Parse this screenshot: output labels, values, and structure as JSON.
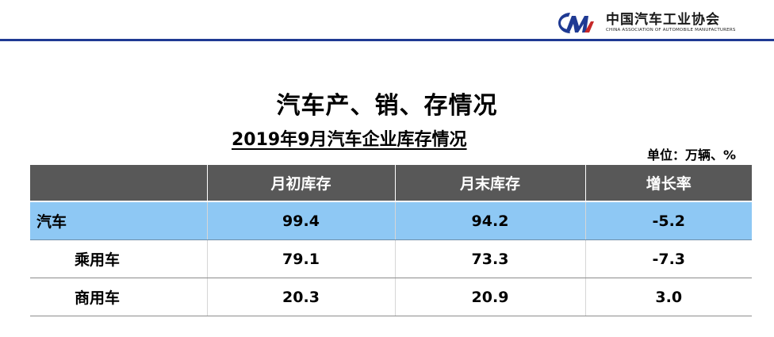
{
  "header": {
    "org_name_cn": "中国汽车工业协会",
    "org_name_en": "CHINA ASSOCIATION OF AUTOMOBILE MANUFACTURERS",
    "logo_text": "CAAM",
    "accent_color": "#1f3a93"
  },
  "title": "汽车产、销、存情况",
  "subtitle": "2019年9月汽车企业库存情况",
  "unit": "单位：万辆、%",
  "table": {
    "columns": [
      "",
      "月初库存",
      "月末库存",
      "增长率"
    ],
    "rows": [
      {
        "name": "汽车",
        "start": "99.4",
        "end": "94.2",
        "growth": "-5.2"
      },
      {
        "name": "乘用车",
        "start": "79.1",
        "end": "73.3",
        "growth": "-7.3"
      },
      {
        "name": "商用车",
        "start": "20.3",
        "end": "20.9",
        "growth": "3.0"
      }
    ],
    "header_color": "#585858",
    "highlight_color": "#8ec8f4"
  }
}
